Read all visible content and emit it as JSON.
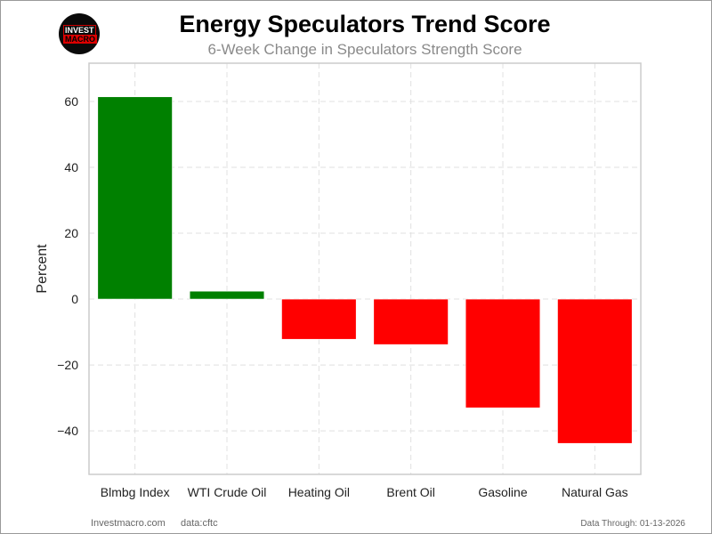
{
  "logo": {
    "line1": "INVEST",
    "line2": "MACRO"
  },
  "footer": {
    "site": "Investmacro.com",
    "source": "data:cftc",
    "date": "Data Through: 01-13-2026"
  },
  "colors": {
    "positive": "#008000",
    "negative": "#ff0000",
    "grid": "#e0e0e0",
    "axis": "#cccccc"
  },
  "chart_data": {
    "type": "bar",
    "title": "Energy Speculators Trend Score",
    "subtitle": "6-Week Change in Speculators Strength Score",
    "xlabel": "",
    "ylabel": "Percent",
    "categories": [
      "Blmbg Index",
      "WTI Crude Oil",
      "Heating Oil",
      "Brent Oil",
      "Gasoline",
      "Natural Gas"
    ],
    "values": [
      61.4,
      2.4,
      -12.2,
      -13.8,
      -33.0,
      -43.8
    ],
    "ylim": [
      -53.2,
      71.6
    ],
    "yticks": [
      -40,
      -20,
      0,
      20,
      40,
      60
    ],
    "ytick_labels": [
      "−40",
      "−20",
      "0",
      "20",
      "40",
      "60"
    ],
    "grid": true
  }
}
